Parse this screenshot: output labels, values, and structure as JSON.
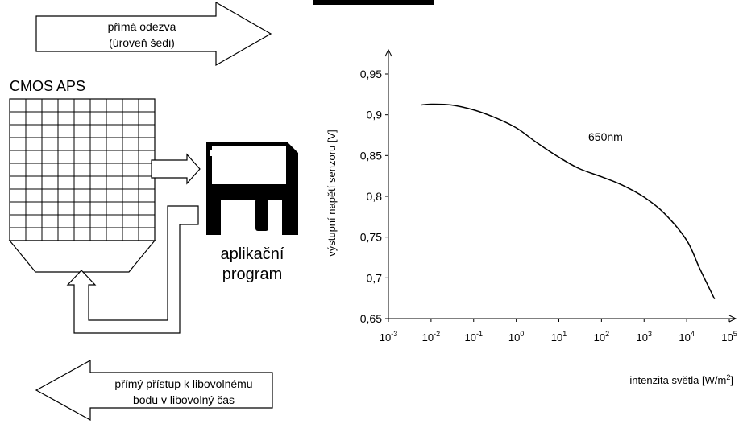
{
  "diagram": {
    "top_arrow": {
      "line1": "přímá odezva",
      "line2": "(úroveň šedi)"
    },
    "bottom_arrow": {
      "line1": "přímý přístup k libovolnému",
      "line2": "bodu v libovolný čas"
    },
    "sensor_label": "CMOS APS",
    "program_label": {
      "line1": "aplikační",
      "line2": "program"
    },
    "program_icon": "floppy-disk-icon",
    "grid": {
      "columns": 9,
      "rows": 11
    }
  },
  "chart_data": {
    "type": "line",
    "annotation": "650nm",
    "ylabel": "výstupní napětí senzoru [V]",
    "xlabel": "intenzita světla [W/m²]",
    "x_scale": "log",
    "xlim": [
      0.001,
      100000
    ],
    "ylim": [
      0.65,
      0.95
    ],
    "x_ticks": [
      {
        "base": "10",
        "exp": "-3"
      },
      {
        "base": "10",
        "exp": "-2"
      },
      {
        "base": "10",
        "exp": "-1"
      },
      {
        "base": "10",
        "exp": "0"
      },
      {
        "base": "10",
        "exp": "1"
      },
      {
        "base": "10",
        "exp": "2"
      },
      {
        "base": "10",
        "exp": "3"
      },
      {
        "base": "10",
        "exp": "4"
      },
      {
        "base": "10",
        "exp": "5"
      }
    ],
    "y_ticks": [
      "0,65",
      "0,7",
      "0,75",
      "0,8",
      "0,85",
      "0,9",
      "0,95"
    ],
    "grid": false,
    "legend": "none",
    "series": [
      {
        "x": [
          0.006,
          0.01,
          0.03,
          0.1,
          0.3,
          1,
          3,
          10,
          30,
          100,
          300,
          1000,
          3000,
          10000,
          20000,
          45000
        ],
        "values": [
          0.912,
          0.913,
          0.912,
          0.906,
          0.897,
          0.884,
          0.866,
          0.848,
          0.834,
          0.824,
          0.814,
          0.799,
          0.779,
          0.746,
          0.712,
          0.674
        ]
      }
    ]
  }
}
